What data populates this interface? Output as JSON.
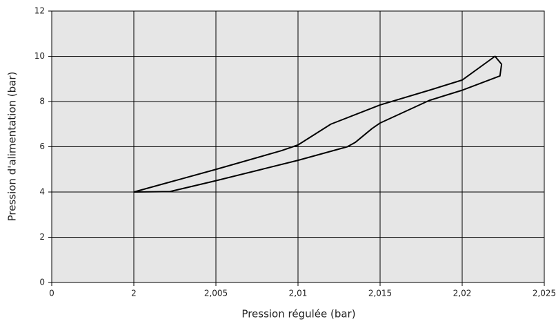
{
  "chart_data": {
    "type": "line",
    "xlabel": "Pression régulée (bar)",
    "ylabel": "Pression d'alimentation (bar)",
    "series": [
      {
        "color": "#000000",
        "x": [
          2,
          2.005,
          2.009,
          2.01,
          2.012,
          2.015,
          2.018,
          2.02,
          2.022,
          2.0224,
          2.0223,
          2.02,
          2.018,
          2.015,
          2.0145,
          2.0135,
          2.013,
          2.01,
          2.005,
          2.0022,
          2
        ],
        "values": [
          4,
          5.0,
          5.83,
          6.08,
          7.0,
          7.85,
          8.5,
          8.95,
          10.0,
          9.65,
          9.13,
          8.5,
          8.05,
          7.05,
          6.8,
          6.2,
          6.0,
          5.4,
          4.5,
          4.02,
          4
        ]
      }
    ],
    "xlim": [
      0,
      2.025
    ],
    "xticks": [
      0,
      2,
      {
        "value": 2.005,
        "label": "2,005"
      },
      {
        "value": 2.01,
        "label": "2,01"
      },
      {
        "value": 2.015,
        "label": "2,015"
      },
      {
        "value": 2.02,
        "label": "2,02"
      },
      {
        "value": 2.025,
        "label": "2,025"
      }
    ],
    "ylim": [
      0,
      12
    ],
    "yticks": [
      0,
      2,
      4,
      6,
      8,
      10,
      12
    ],
    "grid": true,
    "background": "#e6e6e6"
  }
}
